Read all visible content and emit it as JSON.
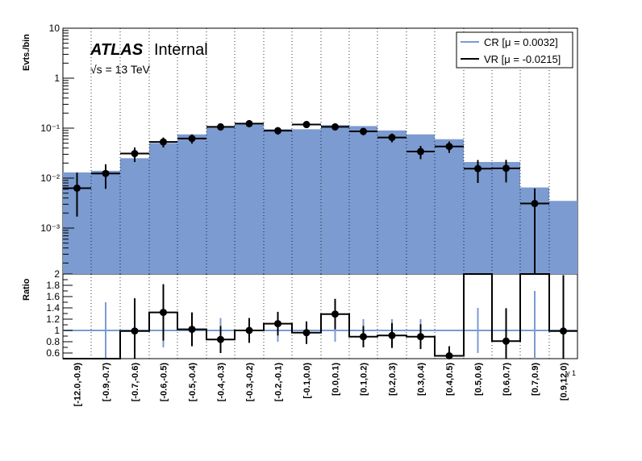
{
  "chart_data": [
    {
      "type": "bar",
      "panel": "main",
      "ylabel": "Evts./bin",
      "yscale": "log",
      "ylim": [
        0.00015,
        10
      ],
      "y_tick_labels": [
        "10",
        "1",
        "10⁻¹",
        "10⁻²",
        "10⁻³"
      ],
      "x_tick_labels": [
        "[-12.0,-0.9)",
        "[-0.9,-0.7)",
        "[-0.7,-0.6)",
        "[-0.6,-0.5)",
        "[-0.5,-0.4)",
        "[-0.4,-0.3)",
        "[-0.3,-0.2)",
        "[-0.2,-0.1)",
        "[-0.1,0.0)",
        "[0.0,0.1)",
        "[0.1,0.2)",
        "[0.2,0.3)",
        "[0.3,0.4)",
        "[0.4,0.5)",
        "[0.5,0.6)",
        "[0.6,0.7)",
        "[0.7,0.9)",
        "[0.9,12.0)"
      ],
      "xlabel": "γ 1",
      "grid": "vertical dotted at bin edges",
      "legend_position": "top-right",
      "series": [
        {
          "name": "CR [μ = 0.0032]",
          "style": "filled histogram",
          "color": "#7b9bd1",
          "values": [
            0.013,
            0.014,
            0.025,
            0.05,
            0.075,
            0.105,
            0.12,
            0.095,
            0.095,
            0.115,
            0.11,
            0.09,
            0.075,
            0.06,
            0.021,
            0.021,
            0.0065,
            0.0035
          ]
        },
        {
          "name": "VR [μ = -0.0215]",
          "style": "points with error bars",
          "color": "#000000",
          "values": [
            0.0063,
            0.0124,
            0.031,
            0.053,
            0.062,
            0.106,
            0.123,
            0.089,
            0.118,
            0.106,
            0.086,
            0.065,
            0.034,
            0.043,
            0.0155,
            0.0157,
            0.0031,
            null
          ],
          "err_low": [
            0.0046,
            0.0063,
            0.01,
            0.012,
            0.013,
            0.017,
            0.018,
            0.015,
            0.017,
            0.016,
            0.014,
            0.013,
            0.01,
            0.011,
            0.0075,
            0.0075,
            0.0031,
            null
          ],
          "err_high": [
            0.0066,
            0.0065,
            0.01,
            0.012,
            0.013,
            0.017,
            0.018,
            0.015,
            0.017,
            0.016,
            0.014,
            0.013,
            0.01,
            0.011,
            0.0075,
            0.0075,
            0.0031,
            null
          ]
        }
      ]
    },
    {
      "type": "line",
      "panel": "ratio",
      "ylabel": "Ratio",
      "ylim": [
        0.5,
        2.0
      ],
      "y_tick_labels": [
        "2",
        "1.8",
        "1.6",
        "1.4",
        "1.2",
        "1",
        "0.8",
        "0.6"
      ],
      "y_ticks": [
        2.0,
        1.8,
        1.6,
        1.4,
        1.2,
        1.0,
        0.8,
        0.6
      ],
      "series": [
        {
          "name": "CR",
          "color": "#7b9bd1",
          "values": [
            1,
            1,
            1,
            1,
            1,
            1,
            1,
            1,
            1,
            1,
            1,
            1,
            1,
            1,
            1,
            1,
            1,
            1
          ],
          "err": [
            0,
            0.5,
            0,
            0.3,
            0.15,
            0.22,
            0.15,
            0.2,
            0.15,
            0.2,
            0.2,
            0.2,
            0.2,
            0,
            0.4,
            0.4,
            0.7,
            0
          ]
        },
        {
          "name": "VR",
          "color": "#000000",
          "values": [
            0.5,
            0.5,
            0.99,
            1.32,
            1.02,
            0.84,
            1.0,
            1.12,
            0.96,
            1.29,
            0.89,
            0.91,
            0.89,
            0.55,
            2.0,
            0.81,
            2.0,
            0.99
          ],
          "err": [
            null,
            null,
            0.58,
            0.5,
            0.3,
            0.24,
            0.22,
            0.21,
            0.2,
            0.27,
            0.19,
            0.22,
            0.22,
            0.17,
            null,
            0.58,
            null,
            0.99
          ],
          "markers": [
            false,
            false,
            true,
            true,
            true,
            true,
            true,
            true,
            true,
            true,
            true,
            true,
            true,
            true,
            false,
            true,
            false,
            true
          ]
        }
      ]
    }
  ],
  "labels": {
    "atlas": "ATLAS",
    "internal": "Internal",
    "energy": "√s = 13 TeV"
  }
}
